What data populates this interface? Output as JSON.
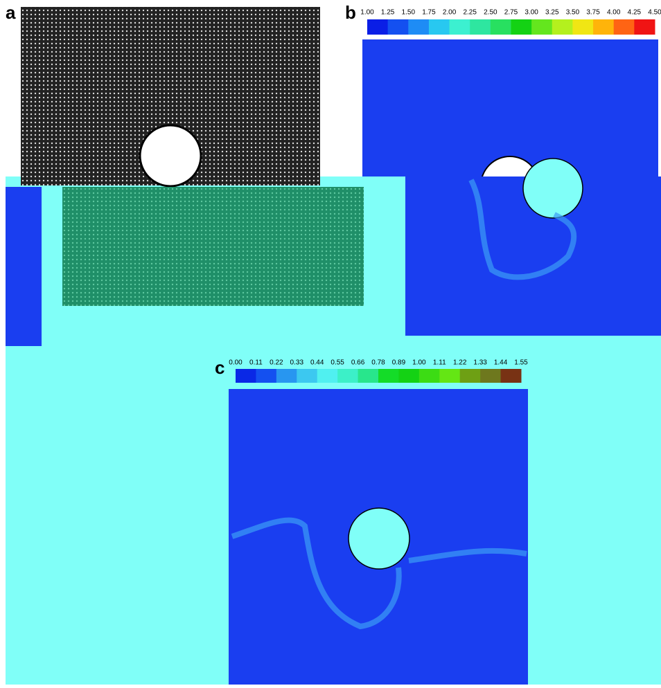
{
  "panels": {
    "a": {
      "label": "a"
    },
    "b": {
      "label": "b"
    },
    "c": {
      "label": "c"
    }
  },
  "colorbar_b": {
    "ticks": [
      "1.00",
      "1.25",
      "1.50",
      "1.75",
      "2.00",
      "2.25",
      "2.50",
      "2.75",
      "3.00",
      "3.25",
      "3.50",
      "3.75",
      "4.00",
      "4.25",
      "4.50"
    ],
    "colors": [
      "#0a1ee6",
      "#1450f0",
      "#1e8cf5",
      "#28c8f0",
      "#3cf0d0",
      "#2ee6a0",
      "#28e060",
      "#14d214",
      "#64e61e",
      "#b4f01e",
      "#f0e614",
      "#ffb40a",
      "#ff6414",
      "#f01414"
    ]
  },
  "colorbar_c": {
    "ticks": [
      "0.00",
      "0.11",
      "0.22",
      "0.33",
      "0.44",
      "0.55",
      "0.66",
      "0.78",
      "0.89",
      "1.00",
      "1.11",
      "1.22",
      "1.33",
      "1.44",
      "1.55"
    ],
    "colors": [
      "#0a28e6",
      "#1450f0",
      "#2896f0",
      "#3cc8f0",
      "#50f0f0",
      "#3cf0c8",
      "#28e68c",
      "#14dc28",
      "#14d214",
      "#3cdc14",
      "#64e614",
      "#6ea014",
      "#6e781e",
      "#783214"
    ]
  }
}
